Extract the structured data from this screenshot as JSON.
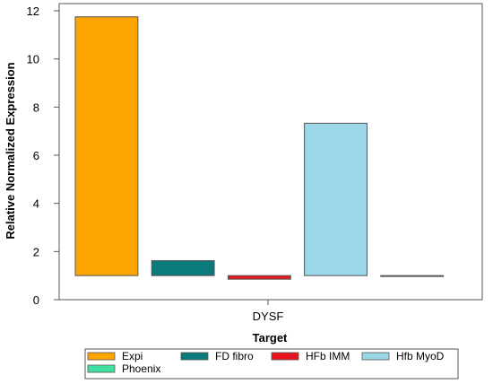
{
  "chart_data": {
    "type": "bar",
    "title": "",
    "xlabel": "Target",
    "ylabel": "Relative Normalized Expression",
    "categories": [
      "DYSF"
    ],
    "baseline": 1,
    "ylim": [
      0,
      12.3
    ],
    "yticks": [
      0,
      2,
      4,
      6,
      8,
      10,
      12
    ],
    "grid": false,
    "legend_position": "bottom",
    "series": [
      {
        "name": "Expi",
        "values": [
          11.75
        ],
        "color": "#FFA500"
      },
      {
        "name": "FD fibro",
        "values": [
          1.62
        ],
        "color": "#0A7A7A"
      },
      {
        "name": "HFb IMM",
        "values": [
          0.85
        ],
        "color": "#E8141E"
      },
      {
        "name": "Hfb MyoD",
        "values": [
          7.33
        ],
        "color": "#9BD7E6"
      },
      {
        "name": "Phoenix",
        "values": [
          1.0
        ],
        "color": "#40E0A0"
      }
    ]
  }
}
